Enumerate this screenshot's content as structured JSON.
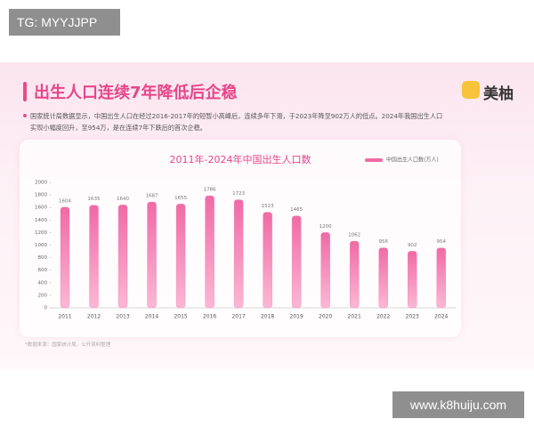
{
  "watermark_top": "TG: MYYJJPP",
  "header": {
    "title": "出生人口连续7年降低后企稳",
    "brand": "美柚",
    "paragraph": "国家统计局数据显示，中国出生人口在经过2016-2017年的短暂小高峰后，连续多年下滑，于2023年降至902万人的低点。2024年我国出生人口实现小幅度回升，至954万，是在连续7年下跌后的首次企稳。"
  },
  "chart_data": {
    "type": "bar",
    "title": "2011年-2024年中国出生人口数",
    "categories": [
      "2011",
      "2012",
      "2013",
      "2014",
      "2015",
      "2016",
      "2017",
      "2018",
      "2019",
      "2020",
      "2021",
      "2022",
      "2023",
      "2024"
    ],
    "series": [
      {
        "name": "中国出生人口数(万人)",
        "color": "#f06aa5",
        "values": [
          1604,
          1635,
          1640,
          1687,
          1655,
          1786,
          1723,
          1523,
          1465,
          1200,
          1062,
          956,
          902,
          954
        ]
      }
    ],
    "ylim": [
      0,
      2000
    ],
    "yticks": [
      0,
      200,
      400,
      600,
      800,
      1000,
      1200,
      1400,
      1600,
      1800,
      2000
    ],
    "grid": false,
    "legend": "top-right",
    "data_labels": true
  },
  "source": "*数据来源：国家统计局，公开资料整理",
  "watermark_bottom": "www.k8huiju.com"
}
